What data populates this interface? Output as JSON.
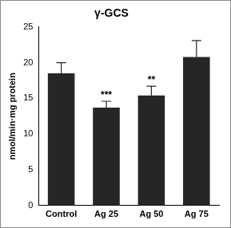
{
  "chart_data": {
    "type": "bar",
    "title": "γ-GCS",
    "y_label": "nmol/min·mg protein",
    "categories": [
      "Control",
      "Ag 25",
      "Ag 50",
      "Ag 75"
    ],
    "values": [
      18.5,
      13.7,
      15.4,
      20.8
    ],
    "errors": [
      1.5,
      0.9,
      1.3,
      2.3
    ],
    "annotations": [
      {
        "category": "Ag 25",
        "text": "***"
      },
      {
        "category": "Ag 50",
        "text": "**"
      }
    ],
    "color": "#262626",
    "ylim": [
      0,
      25
    ],
    "yticks": [
      0,
      5,
      10,
      15,
      20,
      25
    ],
    "grid": false
  }
}
